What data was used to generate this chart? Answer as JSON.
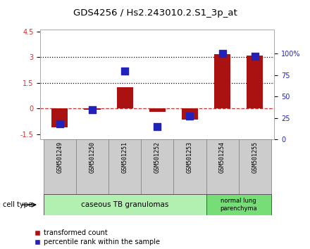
{
  "title": "GDS4256 / Hs2.243010.2.S1_3p_at",
  "samples": [
    "GSM501249",
    "GSM501250",
    "GSM501251",
    "GSM501252",
    "GSM501253",
    "GSM501254",
    "GSM501255"
  ],
  "transformed_count": [
    -1.1,
    -0.05,
    1.25,
    -0.2,
    -0.65,
    3.2,
    3.1
  ],
  "percentile_rank": [
    18,
    35,
    80,
    15,
    27,
    100,
    97
  ],
  "ylim_left": [
    -1.8,
    4.6
  ],
  "ylim_right": [
    0,
    127.7
  ],
  "yticks_left": [
    -1.5,
    0.0,
    1.5,
    3.0,
    4.5
  ],
  "ytick_labels_left": [
    "-1.5",
    "0",
    "1.5",
    "3",
    "4.5"
  ],
  "yticks_right": [
    0,
    25,
    50,
    75,
    100
  ],
  "ytick_labels_right": [
    "0",
    "25",
    "50",
    "75",
    "100%"
  ],
  "hlines": [
    1.5,
    3.0
  ],
  "bar_color": "#aa1111",
  "dot_color": "#2222bb",
  "dashed_line_color": "#cc3333",
  "group1_label": "caseous TB granulomas",
  "group2_label": "normal lung\nparenchyma",
  "group1_indices": [
    0,
    1,
    2,
    3,
    4
  ],
  "group2_indices": [
    5,
    6
  ],
  "cell_type_label": "cell type",
  "legend_bar_label": "transformed count",
  "legend_dot_label": "percentile rank within the sample",
  "bar_width": 0.5,
  "dot_size": 45,
  "group1_color": "#b2f0b2",
  "group2_color": "#77dd77",
  "label_box_color": "#cccccc",
  "left_axis_color": "#cc3333",
  "right_axis_color": "#2222bb"
}
